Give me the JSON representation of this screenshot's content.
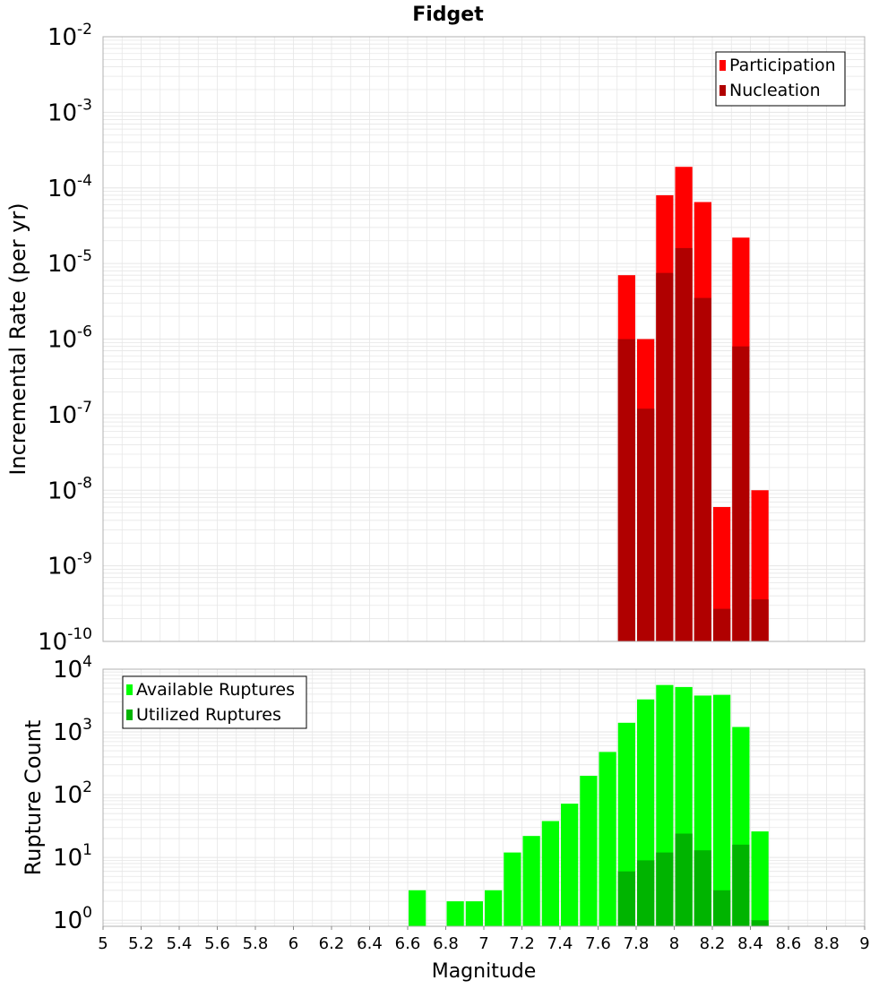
{
  "title": "Fidget",
  "colors": {
    "participation": "#ff0000",
    "nucleation": "#b00000",
    "available": "#00ff00",
    "utilized": "#00b400",
    "grid": "#e6e6e6",
    "axis_border": "#b0b0b0"
  },
  "chart_data": [
    {
      "type": "bar",
      "panel": "top",
      "ylabel": "Incremental Rate (per yr)",
      "yscale": "log",
      "ylim": [
        1e-10,
        0.01
      ],
      "xlim": [
        5,
        9
      ],
      "legend_position": "top-right",
      "grid": true,
      "y_tick_exponents": [
        "-10",
        "-9",
        "-8",
        "-7",
        "-6",
        "-5",
        "-4",
        "-3",
        "-2"
      ],
      "x": [
        7.75,
        7.85,
        7.95,
        8.05,
        8.15,
        8.25,
        8.35,
        8.45
      ],
      "series": [
        {
          "name": "Participation",
          "values": [
            7e-06,
            1e-06,
            8e-05,
            0.00019,
            6.5e-05,
            6e-09,
            2.2e-05,
            1e-08
          ]
        },
        {
          "name": "Nucleation",
          "values": [
            1e-06,
            1.2e-07,
            7.5e-06,
            1.6e-05,
            3.5e-06,
            2.7e-10,
            8e-07,
            3.6e-10
          ]
        }
      ]
    },
    {
      "type": "bar",
      "panel": "bottom",
      "xlabel": "Magnitude",
      "ylabel": "Rupture Count",
      "yscale": "log",
      "ylim": [
        0.8,
        10000
      ],
      "xlim": [
        5,
        9
      ],
      "legend_position": "top-left",
      "grid": true,
      "y_tick_exponents": [
        "0",
        "1",
        "2",
        "3",
        "4"
      ],
      "x_ticks": [
        "5",
        "5.2",
        "5.4",
        "5.6",
        "5.8",
        "6",
        "6.2",
        "6.4",
        "6.6",
        "6.8",
        "7",
        "7.2",
        "7.4",
        "7.6",
        "7.8",
        "8",
        "8.2",
        "8.4",
        "8.6",
        "8.8",
        "9"
      ],
      "x": [
        6.65,
        6.85,
        6.95,
        7.05,
        7.15,
        7.25,
        7.35,
        7.45,
        7.55,
        7.65,
        7.75,
        7.85,
        7.95,
        8.05,
        8.15,
        8.25,
        8.35,
        8.45
      ],
      "series": [
        {
          "name": "Available Ruptures",
          "values": [
            3,
            2,
            2,
            3,
            12,
            22,
            38,
            72,
            200,
            480,
            1400,
            3300,
            5600,
            5200,
            3800,
            3900,
            1200,
            26
          ]
        },
        {
          "name": "Utilized Ruptures",
          "values": [
            0,
            0,
            0,
            0,
            0,
            0,
            0,
            0,
            0,
            0,
            6,
            9,
            12,
            24,
            13,
            3,
            16,
            1
          ]
        }
      ]
    }
  ]
}
